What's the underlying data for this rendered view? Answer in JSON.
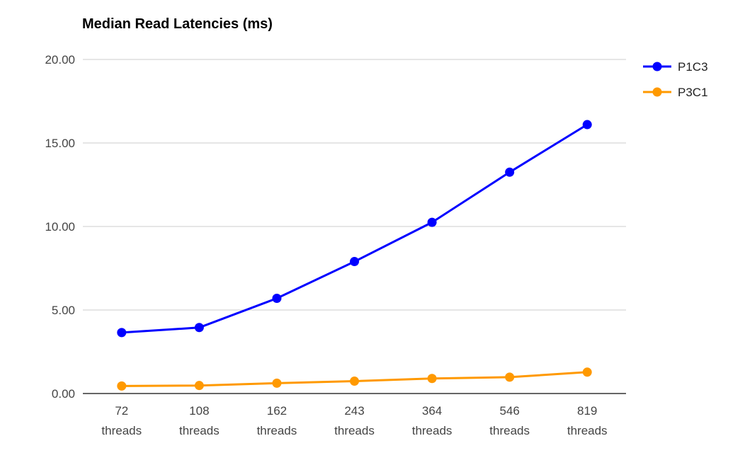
{
  "chart_data": {
    "type": "line",
    "title": "Median Read Latencies (ms)",
    "xlabel": "",
    "ylabel": "",
    "categories": [
      [
        "72",
        "threads"
      ],
      [
        "108",
        "threads"
      ],
      [
        "162",
        "threads"
      ],
      [
        "243",
        "threads"
      ],
      [
        "364",
        "threads"
      ],
      [
        "546",
        "threads"
      ],
      [
        "819",
        "threads"
      ]
    ],
    "ylim": [
      0,
      20
    ],
    "yticks": [
      0,
      5,
      10,
      15,
      20
    ],
    "ytick_labels": [
      "0.00",
      "5.00",
      "10.00",
      "15.00",
      "20.00"
    ],
    "grid": true,
    "legend_position": "right",
    "series": [
      {
        "name": "P1C3",
        "color": "#0000ff",
        "values": [
          3.65,
          3.95,
          5.7,
          7.9,
          10.25,
          13.25,
          16.1
        ]
      },
      {
        "name": "P3C1",
        "color": "#ff9900",
        "values": [
          0.45,
          0.48,
          0.62,
          0.74,
          0.9,
          0.98,
          1.28
        ]
      }
    ]
  }
}
